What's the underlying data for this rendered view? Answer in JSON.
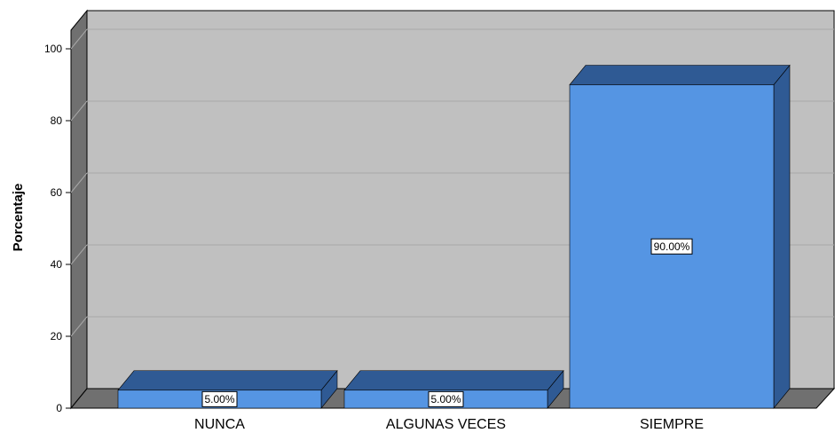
{
  "chart_data": {
    "type": "bar",
    "categories": [
      "NUNCA",
      "ALGUNAS VECES",
      "SIEMPRE"
    ],
    "values": [
      5.0,
      5.0,
      90.0
    ],
    "data_labels": [
      "5.00%",
      "5.00%",
      "90.00%"
    ],
    "ylabel": "Porcentaje",
    "xlabel": "",
    "ylim": [
      0,
      100
    ],
    "yticks": [
      0,
      20,
      40,
      60,
      80,
      100
    ],
    "grid": true,
    "style": "3d",
    "colors": {
      "bar_front": "#5595e3",
      "bar_top": "#2f5a94",
      "bar_side": "#2f5a94",
      "plot_back": "#c0c0c0",
      "plot_wall": "#707070",
      "plot_floor": "#707070",
      "gridline": "#a8a8a8"
    }
  }
}
